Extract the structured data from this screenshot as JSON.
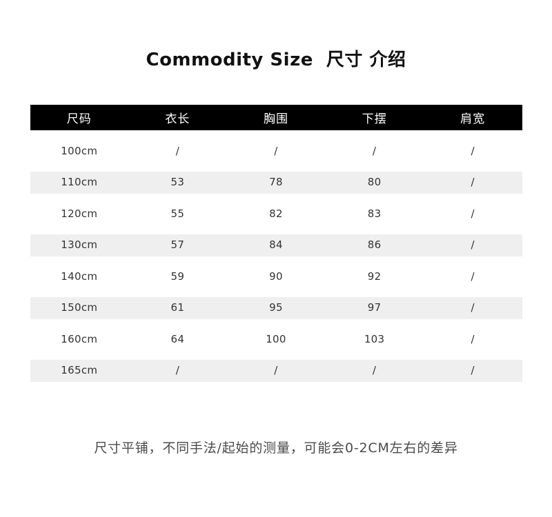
{
  "chart_data": {
    "type": "table",
    "title": "Commodity Size  尺寸 介绍",
    "columns": [
      "尺码",
      "衣长",
      "胸围",
      "下摆",
      "肩宽"
    ],
    "rows": [
      [
        "100cm",
        "/",
        "/",
        "/",
        "/"
      ],
      [
        "110cm",
        "53",
        "78",
        "80",
        "/"
      ],
      [
        "120cm",
        "55",
        "82",
        "83",
        "/"
      ],
      [
        "130cm",
        "57",
        "84",
        "86",
        "/"
      ],
      [
        "140cm",
        "59",
        "90",
        "92",
        "/"
      ],
      [
        "150cm",
        "61",
        "95",
        "97",
        "/"
      ],
      [
        "160cm",
        "64",
        "100",
        "103",
        "/"
      ],
      [
        "165cm",
        "/",
        "/",
        "/",
        "/"
      ]
    ],
    "footnote": "尺寸平铺，不同手法/起始的测量，可能会0-2CM左右的差异",
    "layout": {
      "striped_row_indexes": [
        1,
        3,
        5,
        7
      ],
      "header_bg": "#000000",
      "header_text_color": "#ffffff",
      "stripe_color": "#efefef",
      "legend": "none",
      "grid": "off"
    }
  }
}
